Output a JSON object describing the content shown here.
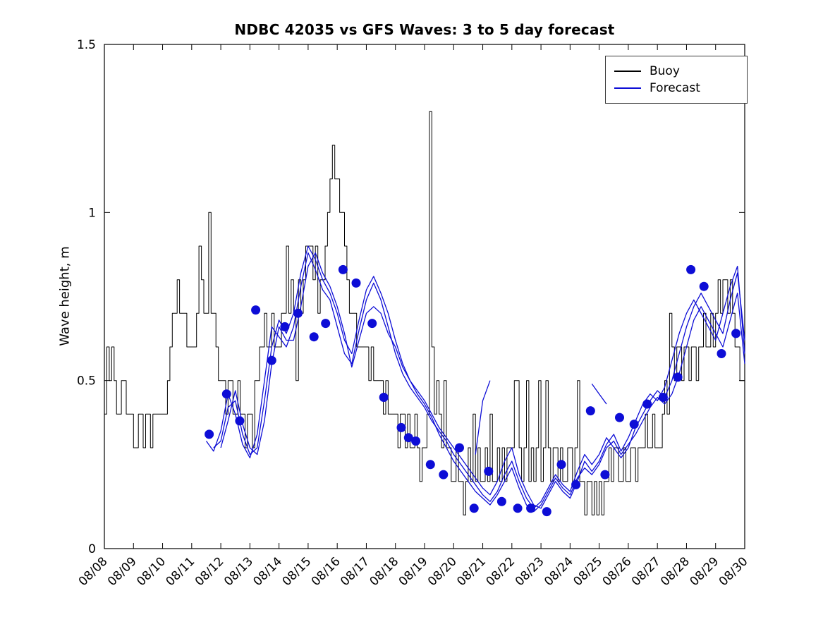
{
  "legend": {
    "items": [
      {
        "label": "Buoy",
        "color": "#000000"
      },
      {
        "label": "Forecast",
        "color": "#0d0dd6"
      }
    ]
  },
  "chart_data": {
    "type": "line",
    "title": "NDBC 42035 vs GFS Waves: 3 to 5 day forecast",
    "xlabel": "",
    "ylabel": "Wave height, m",
    "ylim": [
      0,
      1.5
    ],
    "yticks": [
      0,
      0.5,
      1,
      1.5
    ],
    "ytick_labels": [
      "0",
      "0.5",
      "1",
      "1.5"
    ],
    "xlim": [
      0,
      22
    ],
    "x_tick_labels": [
      "08/08",
      "08/09",
      "08/10",
      "08/11",
      "08/12",
      "08/13",
      "08/14",
      "08/15",
      "08/16",
      "08/17",
      "08/18",
      "08/19",
      "08/20",
      "08/21",
      "08/22",
      "08/23",
      "08/24",
      "08/25",
      "08/26",
      "08/27",
      "08/28",
      "08/29",
      "08/30"
    ],
    "grid": false,
    "legend_position": "top-right",
    "series": [
      {
        "id": "buoy",
        "name": "Buoy",
        "color": "#000000",
        "step": true,
        "width": 1,
        "x_start": 0,
        "dx": 0.0833333,
        "values": [
          0.4,
          0.6,
          0.5,
          0.6,
          0.5,
          0.4,
          0.4,
          0.5,
          0.5,
          0.4,
          0.4,
          0.4,
          0.3,
          0.3,
          0.4,
          0.4,
          0.3,
          0.4,
          0.4,
          0.3,
          0.4,
          0.4,
          0.4,
          0.4,
          0.4,
          0.4,
          0.5,
          0.6,
          0.7,
          0.7,
          0.8,
          0.7,
          0.7,
          0.7,
          0.6,
          0.6,
          0.6,
          0.6,
          0.7,
          0.9,
          0.8,
          0.7,
          0.7,
          1.0,
          0.7,
          0.7,
          0.6,
          0.5,
          0.5,
          0.5,
          0.4,
          0.5,
          0.5,
          0.4,
          0.4,
          0.5,
          0.4,
          0.4,
          0.3,
          0.4,
          0.4,
          0.3,
          0.5,
          0.5,
          0.6,
          0.6,
          0.7,
          0.6,
          0.6,
          0.7,
          0.6,
          0.6,
          0.6,
          0.7,
          0.7,
          0.9,
          0.7,
          0.8,
          0.7,
          0.5,
          0.8,
          0.7,
          0.8,
          0.9,
          0.9,
          0.9,
          0.8,
          0.9,
          0.7,
          0.8,
          0.8,
          0.9,
          1.0,
          1.1,
          1.2,
          1.1,
          1.1,
          1.0,
          1.0,
          0.9,
          0.8,
          0.7,
          0.7,
          0.7,
          0.6,
          0.6,
          0.6,
          0.6,
          0.6,
          0.5,
          0.6,
          0.5,
          0.5,
          0.5,
          0.5,
          0.4,
          0.5,
          0.4,
          0.4,
          0.4,
          0.4,
          0.3,
          0.4,
          0.4,
          0.3,
          0.4,
          0.3,
          0.3,
          0.4,
          0.3,
          0.2,
          0.3,
          0.3,
          0.4,
          1.3,
          0.6,
          0.4,
          0.5,
          0.4,
          0.3,
          0.5,
          0.3,
          0.3,
          0.2,
          0.2,
          0.3,
          0.2,
          0.2,
          0.1,
          0.2,
          0.3,
          0.2,
          0.4,
          0.2,
          0.3,
          0.2,
          0.2,
          0.3,
          0.2,
          0.4,
          0.2,
          0.2,
          0.3,
          0.2,
          0.3,
          0.2,
          0.3,
          0.3,
          0.3,
          0.5,
          0.5,
          0.3,
          0.2,
          0.3,
          0.5,
          0.2,
          0.3,
          0.2,
          0.3,
          0.5,
          0.2,
          0.3,
          0.5,
          0.3,
          0.2,
          0.3,
          0.3,
          0.2,
          0.3,
          0.2,
          0.2,
          0.3,
          0.3,
          0.2,
          0.3,
          0.5,
          0.2,
          0.2,
          0.1,
          0.2,
          0.2,
          0.1,
          0.2,
          0.1,
          0.2,
          0.1,
          0.2,
          0.2,
          0.3,
          0.2,
          0.3,
          0.3,
          0.2,
          0.2,
          0.3,
          0.2,
          0.2,
          0.3,
          0.3,
          0.2,
          0.3,
          0.3,
          0.3,
          0.4,
          0.3,
          0.3,
          0.4,
          0.3,
          0.3,
          0.3,
          0.4,
          0.5,
          0.4,
          0.7,
          0.6,
          0.5,
          0.6,
          0.6,
          0.5,
          0.6,
          0.6,
          0.5,
          0.6,
          0.6,
          0.5,
          0.6,
          0.6,
          0.7,
          0.6,
          0.6,
          0.7,
          0.6,
          0.7,
          0.8,
          0.7,
          0.8,
          0.8,
          0.7,
          0.8,
          0.7,
          0.6,
          0.6,
          0.5,
          0.5
        ]
      },
      {
        "id": "forecast-1",
        "name": "Forecast",
        "color": "#0d0dd6",
        "step": false,
        "width": 1.3,
        "x_start": 3.5,
        "dx": 0.25,
        "values": [
          0.32,
          0.29,
          0.35,
          0.46,
          0.4,
          0.31,
          0.27,
          0.34,
          0.5,
          0.66,
          0.63,
          0.6,
          0.66,
          0.78,
          0.88,
          0.83,
          0.77,
          0.74,
          0.66,
          0.58,
          0.55,
          0.65,
          0.74,
          0.79,
          0.74,
          0.66,
          0.58,
          0.52,
          0.48,
          0.45,
          0.42,
          0.38,
          0.35,
          0.32,
          0.28,
          0.25,
          0.22,
          0.19,
          0.16,
          0.14,
          0.17,
          0.22,
          0.26,
          0.2,
          0.15,
          0.12,
          0.14,
          0.18,
          0.22,
          0.19,
          0.17,
          0.23,
          0.28,
          0.25,
          0.28,
          0.33,
          0.3,
          0.27,
          0.3,
          0.36,
          0.4,
          0.44,
          0.47,
          0.45,
          0.5,
          0.58,
          0.66,
          0.72,
          0.76,
          0.72,
          0.68,
          0.64,
          0.74,
          0.82,
          0.62
        ]
      },
      {
        "id": "forecast-2",
        "name": "Forecast",
        "color": "#0d0dd6",
        "step": false,
        "width": 1.3,
        "x_start": 3.75,
        "dx": 0.25,
        "values": [
          0.3,
          0.32,
          0.42,
          0.44,
          0.34,
          0.28,
          0.3,
          0.44,
          0.6,
          0.68,
          0.64,
          0.7,
          0.82,
          0.9,
          0.86,
          0.8,
          0.76,
          0.7,
          0.62,
          0.58,
          0.68,
          0.77,
          0.81,
          0.76,
          0.7,
          0.62,
          0.55,
          0.5,
          0.47,
          0.44,
          0.4,
          0.36,
          0.33,
          0.3,
          0.27,
          0.24,
          0.21,
          0.18,
          0.16,
          0.2,
          0.26,
          0.3,
          0.22,
          0.17,
          0.13,
          0.12,
          0.16,
          0.2,
          0.17,
          0.15,
          0.2,
          0.26,
          0.23,
          0.26,
          0.31,
          0.34,
          0.29,
          0.33,
          0.38,
          0.43,
          0.46,
          0.44,
          0.48,
          0.56,
          0.64,
          0.7,
          0.74,
          0.7,
          0.66,
          0.62,
          0.7,
          0.78,
          0.84,
          0.58
        ]
      },
      {
        "id": "forecast-3",
        "name": "Forecast",
        "color": "#0d0dd6",
        "step": false,
        "width": 1.3,
        "x_start": 4.0,
        "dx": 0.25,
        "values": [
          0.3,
          0.38,
          0.47,
          0.37,
          0.3,
          0.28,
          0.38,
          0.55,
          0.66,
          0.62,
          0.62,
          0.72,
          0.84,
          0.88,
          0.82,
          0.78,
          0.72,
          0.64,
          0.54,
          0.62,
          0.7,
          0.72,
          0.7,
          0.64,
          0.6,
          0.54,
          0.5,
          0.46,
          0.43,
          0.39,
          0.34,
          0.3,
          0.26,
          0.23,
          0.2,
          0.17,
          0.15,
          0.13,
          0.16,
          0.2,
          0.24,
          0.18,
          0.13,
          0.11,
          0.13,
          0.17,
          0.21,
          0.18,
          0.16,
          0.21,
          0.24,
          0.22,
          0.25,
          0.3,
          0.32,
          0.28,
          0.31,
          0.34,
          0.38,
          0.42,
          0.45,
          0.43,
          0.46,
          0.52,
          0.6,
          0.68,
          0.72,
          0.68,
          0.64,
          0.6,
          0.68,
          0.76,
          0.55
        ]
      },
      {
        "id": "forecast-4",
        "name": "Forecast",
        "color": "#0d0dd6",
        "step": false,
        "width": 1.3,
        "x_start": 12.75,
        "dx": 0.25,
        "values": [
          0.28,
          0.44,
          0.5
        ]
      },
      {
        "id": "forecast-5",
        "name": "Forecast",
        "color": "#0d0dd6",
        "step": false,
        "width": 1.3,
        "x_start": 16.75,
        "dx": 0.25,
        "values": [
          0.49,
          0.46,
          0.43
        ]
      }
    ],
    "markers": {
      "name": "Forecast verification points",
      "color": "#0d0dd6",
      "points": [
        [
          3.6,
          0.34
        ],
        [
          4.2,
          0.46
        ],
        [
          4.65,
          0.38
        ],
        [
          5.2,
          0.71
        ],
        [
          5.75,
          0.56
        ],
        [
          6.2,
          0.66
        ],
        [
          6.65,
          0.7
        ],
        [
          7.2,
          0.63
        ],
        [
          7.6,
          0.67
        ],
        [
          8.2,
          0.83
        ],
        [
          8.65,
          0.79
        ],
        [
          9.2,
          0.67
        ],
        [
          9.6,
          0.45
        ],
        [
          10.2,
          0.36
        ],
        [
          10.45,
          0.33
        ],
        [
          10.7,
          0.32
        ],
        [
          11.2,
          0.25
        ],
        [
          11.65,
          0.22
        ],
        [
          12.2,
          0.3
        ],
        [
          12.7,
          0.12
        ],
        [
          13.2,
          0.23
        ],
        [
          13.65,
          0.14
        ],
        [
          14.2,
          0.12
        ],
        [
          14.65,
          0.12
        ],
        [
          15.2,
          0.11
        ],
        [
          15.7,
          0.25
        ],
        [
          16.2,
          0.19
        ],
        [
          16.7,
          0.41
        ],
        [
          17.2,
          0.22
        ],
        [
          17.7,
          0.39
        ],
        [
          18.2,
          0.37
        ],
        [
          18.65,
          0.43
        ],
        [
          19.2,
          0.45
        ],
        [
          19.7,
          0.51
        ],
        [
          20.15,
          0.83
        ],
        [
          20.6,
          0.78
        ],
        [
          21.2,
          0.58
        ],
        [
          21.7,
          0.64
        ]
      ]
    }
  }
}
